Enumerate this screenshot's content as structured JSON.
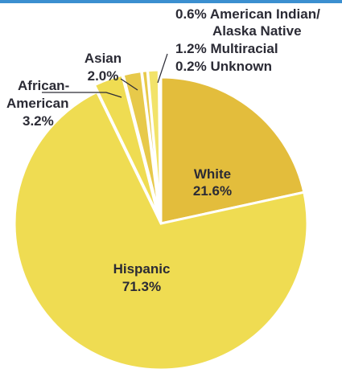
{
  "chart_data": {
    "type": "pie",
    "title": "",
    "slices": [
      {
        "label": "White",
        "value": 21.6,
        "value_label": "21.6%",
        "color": "#e3bd3c",
        "exploded": false
      },
      {
        "label": "Hispanic",
        "value": 71.3,
        "value_label": "71.3%",
        "color": "#efdc52",
        "exploded": false
      },
      {
        "label": "African-American",
        "value": 3.2,
        "value_label": "3.2%",
        "color": "#efdc52",
        "exploded": true
      },
      {
        "label": "Asian",
        "value": 2.0,
        "value_label": "2.0%",
        "color": "#e7c94a",
        "exploded": true
      },
      {
        "label": "American Indian/Alaska Native",
        "value": 0.6,
        "value_label": "0.6%",
        "color": "#e7c94a",
        "exploded": true
      },
      {
        "label": "Multiracial",
        "value": 1.2,
        "value_label": "1.2%",
        "color": "#f2e36a",
        "exploded": true
      },
      {
        "label": "Unknown",
        "value": 0.2,
        "value_label": "0.2%",
        "color": "#efdc52",
        "exploded": true
      }
    ],
    "labels": {
      "white": [
        "White",
        "21.6%"
      ],
      "hispanic": [
        "Hispanic",
        "71.3%"
      ],
      "african_american": [
        "African-",
        "American",
        "3.2%"
      ],
      "asian": [
        "Asian",
        "2.0%"
      ],
      "right_group": [
        "0.6% American Indian/",
        "Alaska Native",
        "1.2% Multiracial",
        "0.2% Unknown"
      ]
    }
  }
}
